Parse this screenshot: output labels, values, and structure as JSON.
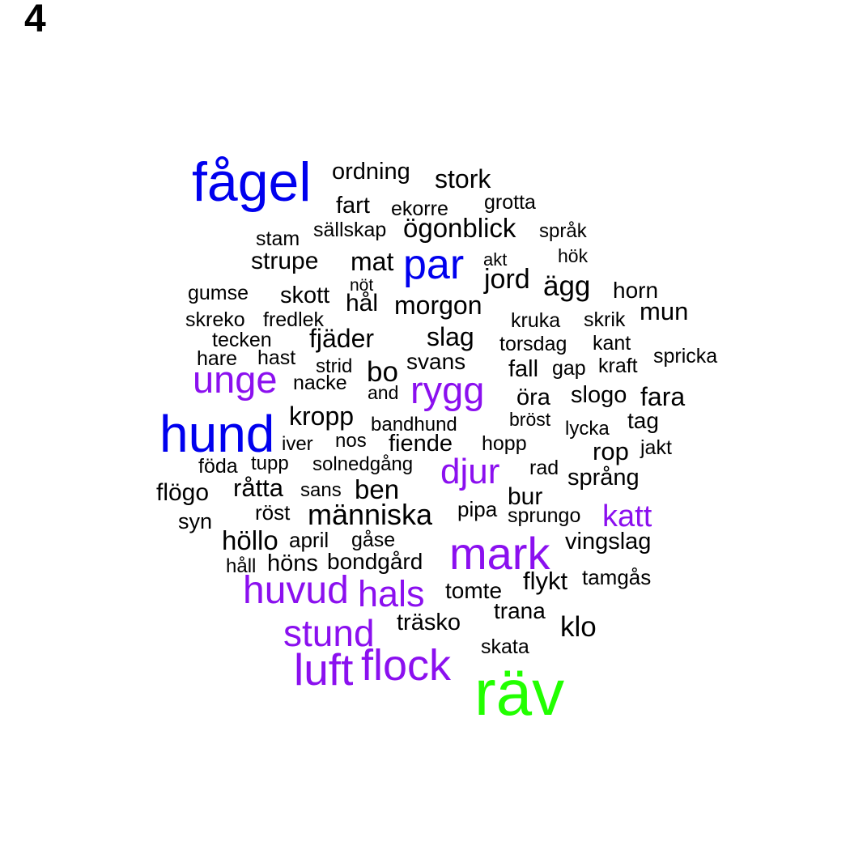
{
  "panel_label": "4",
  "colors": {
    "blue": "#0000ee",
    "purple": "#8b10ef",
    "green": "#22ff00",
    "black": "#000000"
  },
  "words": [
    {
      "text": "fågel",
      "color": "blue"
    },
    {
      "text": "ordning",
      "color": "black"
    },
    {
      "text": "stork",
      "color": "black"
    },
    {
      "text": "fart",
      "color": "black"
    },
    {
      "text": "ekorre",
      "color": "black"
    },
    {
      "text": "grotta",
      "color": "black"
    },
    {
      "text": "sällskap",
      "color": "black"
    },
    {
      "text": "ögonblick",
      "color": "black"
    },
    {
      "text": "språk",
      "color": "black"
    },
    {
      "text": "stam",
      "color": "black"
    },
    {
      "text": "strupe",
      "color": "black"
    },
    {
      "text": "mat",
      "color": "black"
    },
    {
      "text": "par",
      "color": "blue"
    },
    {
      "text": "akt",
      "color": "black"
    },
    {
      "text": "hök",
      "color": "black"
    },
    {
      "text": "nöt",
      "color": "black"
    },
    {
      "text": "jord",
      "color": "black"
    },
    {
      "text": "gumse",
      "color": "black"
    },
    {
      "text": "skott",
      "color": "black"
    },
    {
      "text": "hål",
      "color": "black"
    },
    {
      "text": "ägg",
      "color": "black"
    },
    {
      "text": "horn",
      "color": "black"
    },
    {
      "text": "morgon",
      "color": "black"
    },
    {
      "text": "mun",
      "color": "black"
    },
    {
      "text": "skreko",
      "color": "black"
    },
    {
      "text": "fredlek",
      "color": "black"
    },
    {
      "text": "kruka",
      "color": "black"
    },
    {
      "text": "skrik",
      "color": "black"
    },
    {
      "text": "tecken",
      "color": "black"
    },
    {
      "text": "fjäder",
      "color": "black"
    },
    {
      "text": "slag",
      "color": "black"
    },
    {
      "text": "torsdag",
      "color": "black"
    },
    {
      "text": "kant",
      "color": "black"
    },
    {
      "text": "hare",
      "color": "black"
    },
    {
      "text": "hast",
      "color": "black"
    },
    {
      "text": "strid",
      "color": "black"
    },
    {
      "text": "svans",
      "color": "black"
    },
    {
      "text": "spricka",
      "color": "black"
    },
    {
      "text": "bo",
      "color": "black"
    },
    {
      "text": "fall",
      "color": "black"
    },
    {
      "text": "gap",
      "color": "black"
    },
    {
      "text": "kraft",
      "color": "black"
    },
    {
      "text": "unge",
      "color": "purple"
    },
    {
      "text": "nacke",
      "color": "black"
    },
    {
      "text": "rygg",
      "color": "purple"
    },
    {
      "text": "and",
      "color": "black"
    },
    {
      "text": "öra",
      "color": "black"
    },
    {
      "text": "slogo",
      "color": "black"
    },
    {
      "text": "fara",
      "color": "black"
    },
    {
      "text": "kropp",
      "color": "black"
    },
    {
      "text": "bröst",
      "color": "black"
    },
    {
      "text": "tag",
      "color": "black"
    },
    {
      "text": "hund",
      "color": "blue"
    },
    {
      "text": "bandhund",
      "color": "black"
    },
    {
      "text": "lycka",
      "color": "black"
    },
    {
      "text": "iver",
      "color": "black"
    },
    {
      "text": "nos",
      "color": "black"
    },
    {
      "text": "fiende",
      "color": "black"
    },
    {
      "text": "hopp",
      "color": "black"
    },
    {
      "text": "rop",
      "color": "black"
    },
    {
      "text": "jakt",
      "color": "black"
    },
    {
      "text": "föda",
      "color": "black"
    },
    {
      "text": "tupp",
      "color": "black"
    },
    {
      "text": "solnedgång",
      "color": "black"
    },
    {
      "text": "djur",
      "color": "purple"
    },
    {
      "text": "rad",
      "color": "black"
    },
    {
      "text": "flögo",
      "color": "black"
    },
    {
      "text": "råtta",
      "color": "black"
    },
    {
      "text": "sans",
      "color": "black"
    },
    {
      "text": "ben",
      "color": "black"
    },
    {
      "text": "bur",
      "color": "black"
    },
    {
      "text": "språng",
      "color": "black"
    },
    {
      "text": "röst",
      "color": "black"
    },
    {
      "text": "människa",
      "color": "black"
    },
    {
      "text": "pipa",
      "color": "black"
    },
    {
      "text": "syn",
      "color": "black"
    },
    {
      "text": "sprungo",
      "color": "black"
    },
    {
      "text": "katt",
      "color": "purple"
    },
    {
      "text": "höllo",
      "color": "black"
    },
    {
      "text": "april",
      "color": "black"
    },
    {
      "text": "gåse",
      "color": "black"
    },
    {
      "text": "mark",
      "color": "purple"
    },
    {
      "text": "vingslag",
      "color": "black"
    },
    {
      "text": "håll",
      "color": "black"
    },
    {
      "text": "höns",
      "color": "black"
    },
    {
      "text": "bondgård",
      "color": "black"
    },
    {
      "text": "huvud",
      "color": "purple"
    },
    {
      "text": "hals",
      "color": "purple"
    },
    {
      "text": "tomte",
      "color": "black"
    },
    {
      "text": "flykt",
      "color": "black"
    },
    {
      "text": "tamgås",
      "color": "black"
    },
    {
      "text": "trana",
      "color": "black"
    },
    {
      "text": "stund",
      "color": "purple"
    },
    {
      "text": "träsko",
      "color": "black"
    },
    {
      "text": "klo",
      "color": "black"
    },
    {
      "text": "skata",
      "color": "black"
    },
    {
      "text": "luft",
      "color": "purple"
    },
    {
      "text": "flock",
      "color": "purple"
    },
    {
      "text": "räv",
      "color": "green"
    }
  ]
}
